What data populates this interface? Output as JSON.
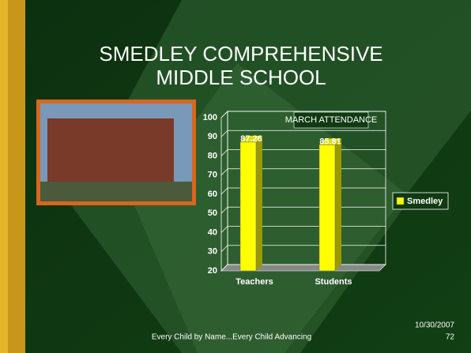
{
  "title_lines": [
    "SMEDLEY COMPREHENSIVE",
    "MIDDLE SCHOOL"
  ],
  "footer": "Every Child by Name...Every Child Advancing",
  "date": "10/30/2007",
  "slide_number": "72",
  "chart_data": {
    "type": "bar",
    "title": "MARCH ATTENDANCE",
    "categories": [
      "Teachers",
      "Students"
    ],
    "series": [
      {
        "name": "Smedley",
        "color": "#ffff00",
        "values": [
          87.26,
          85.81
        ]
      }
    ],
    "ylim": [
      20,
      100
    ],
    "yticks": [
      20,
      30,
      40,
      50,
      60,
      70,
      80,
      90,
      100
    ],
    "grid": true,
    "legend": "right"
  }
}
